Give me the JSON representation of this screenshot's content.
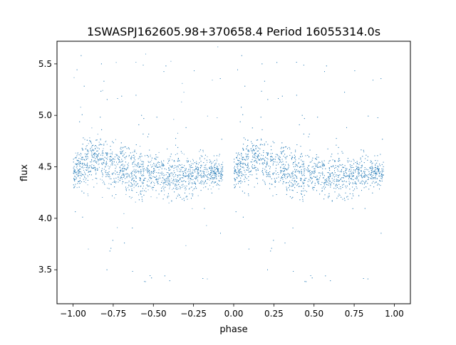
{
  "chart_data": {
    "type": "scatter",
    "title": "1SWASPJ162605.98+370658.4 Period 16055314.0s",
    "xlabel": "phase",
    "ylabel": "flux",
    "xlim": [
      -1.1,
      1.1
    ],
    "ylim": [
      3.17,
      5.72
    ],
    "xticks": [
      -1.0,
      -0.75,
      -0.5,
      -0.25,
      0.0,
      0.25,
      0.5,
      0.75,
      1.0
    ],
    "xtick_labels": [
      "−1.00",
      "−0.75",
      "−0.50",
      "−0.25",
      "0.00",
      "0.25",
      "0.50",
      "0.75",
      "1.00"
    ],
    "yticks": [
      3.5,
      4.0,
      4.5,
      5.0,
      5.5
    ],
    "ytick_labels": [
      "3.5",
      "4.0",
      "4.5",
      "5.0",
      "5.5"
    ],
    "grid": false,
    "marker_color": "#1f77b4",
    "series": [
      {
        "x_range": [
          -1.0,
          -0.07
        ],
        "description_of_density": "dense band",
        "density_profile": [
          {
            "x": -1.0,
            "y_center": 4.45,
            "y_spread": 0.18
          },
          {
            "x": -0.93,
            "y_center": 4.55,
            "y_spread": 0.3
          },
          {
            "x": -0.85,
            "y_center": 4.6,
            "y_spread": 0.3
          },
          {
            "x": -0.75,
            "y_center": 4.5,
            "y_spread": 0.3
          },
          {
            "x": -0.6,
            "y_center": 4.45,
            "y_spread": 0.3
          },
          {
            "x": -0.45,
            "y_center": 4.42,
            "y_spread": 0.28
          },
          {
            "x": -0.3,
            "y_center": 4.42,
            "y_spread": 0.27
          },
          {
            "x": -0.2,
            "y_center": 4.45,
            "y_spread": 0.22
          },
          {
            "x": -0.08,
            "y_center": 4.45,
            "y_spread": 0.15
          }
        ]
      },
      {
        "x_range": [
          0.0,
          0.93
        ],
        "density_profile": [
          {
            "x": 0.0,
            "y_center": 4.45,
            "y_spread": 0.18
          },
          {
            "x": 0.07,
            "y_center": 4.55,
            "y_spread": 0.3
          },
          {
            "x": 0.15,
            "y_center": 4.6,
            "y_spread": 0.3
          },
          {
            "x": 0.25,
            "y_center": 4.5,
            "y_spread": 0.3
          },
          {
            "x": 0.4,
            "y_center": 4.45,
            "y_spread": 0.3
          },
          {
            "x": 0.55,
            "y_center": 4.42,
            "y_spread": 0.28
          },
          {
            "x": 0.7,
            "y_center": 4.42,
            "y_spread": 0.27
          },
          {
            "x": 0.8,
            "y_center": 4.45,
            "y_spread": 0.22
          },
          {
            "x": 0.92,
            "y_center": 4.45,
            "y_spread": 0.15
          }
        ]
      }
    ]
  }
}
